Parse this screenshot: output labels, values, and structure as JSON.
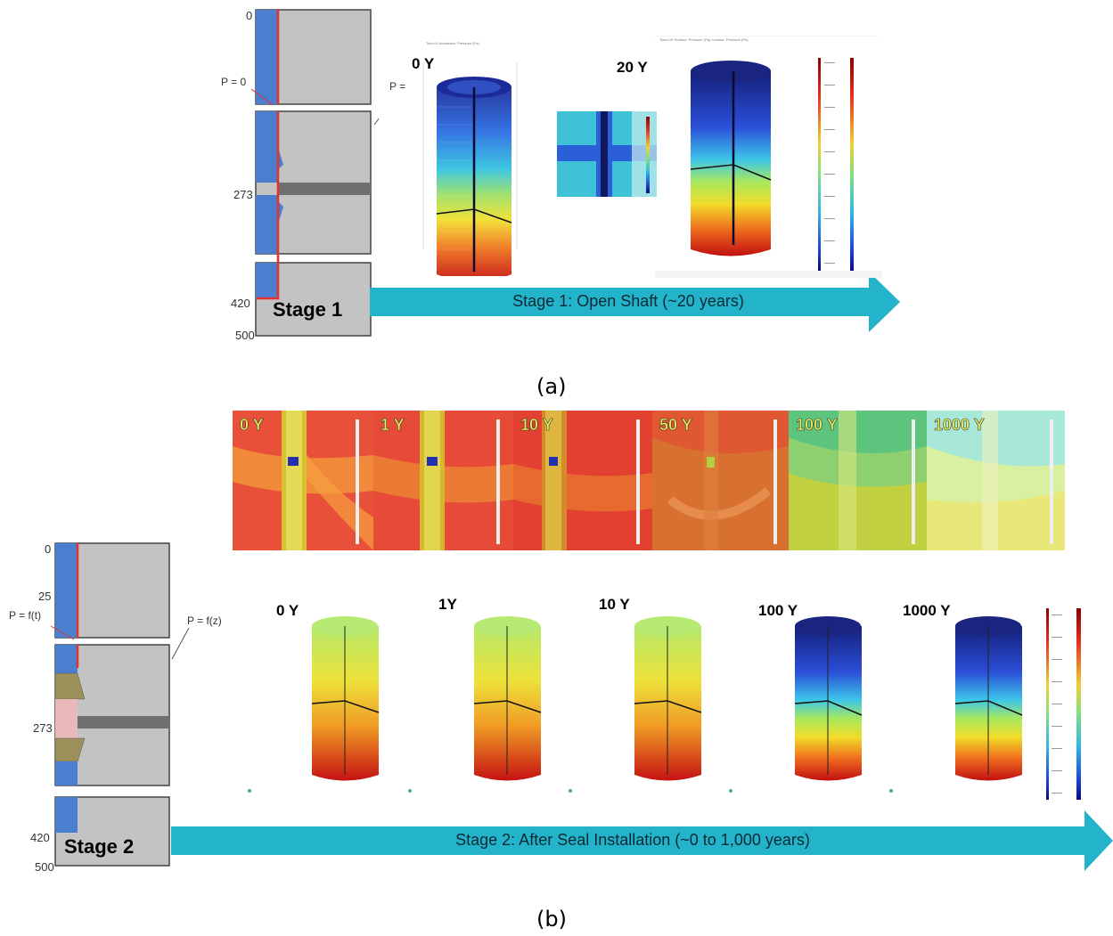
{
  "panel_a": {
    "caption": "(a)",
    "stage_label": "Stage 1",
    "arrow_text": "Stage 1: Open Shaft (~20 years)",
    "depth_labels": [
      "0",
      "273",
      "420",
      "500"
    ],
    "boundary_left": "P = 0",
    "boundary_right": "P =",
    "time_labels": [
      "0 Y",
      "20 Y"
    ],
    "plot_title_0": "Time=0  Isosurface: Pressure (Pa)",
    "plot_title_20": "Time=20  Surface: Pressure (Pa)  Contour: Pressure (Pa)"
  },
  "panel_b": {
    "caption": "(b)",
    "stage_label": "Stage 2",
    "arrow_text": "Stage 2: After Seal Installation (~0 to 1,000 years)",
    "depth_labels": [
      "0",
      "25",
      "273",
      "420",
      "500"
    ],
    "boundary_left": "P = f(t)",
    "boundary_right": "P = f(z)",
    "thumb_labels": [
      "0 Y",
      "1 Y",
      "10 Y",
      "50 Y",
      "100 Y",
      "1000 Y"
    ],
    "column_labels": [
      "0 Y",
      "1Y",
      "10 Y",
      "100 Y",
      "1000 Y"
    ]
  },
  "colors": {
    "shaft_blue": "#4a7fd0",
    "rock_gray": "#c3c3c3",
    "boundary_red": "#e53030",
    "arrow_teal": "#23b4cc",
    "seal_olive": "#9c915a",
    "seal_pink": "#e9b9b9"
  }
}
